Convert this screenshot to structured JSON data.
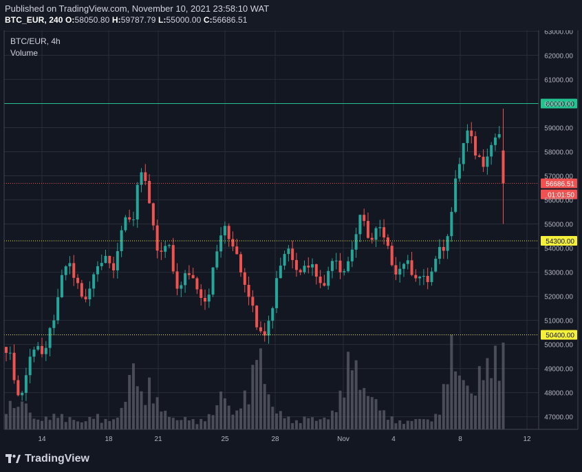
{
  "header": {
    "published": "Published on TradingView.com, November 10, 2021 23:58:10 WAT",
    "symbol_line": "BTC_EUR, 240",
    "o_label": "O:",
    "o_value": "58050.80",
    "h_label": "H:",
    "h_value": "59787.79",
    "l_label": "L:",
    "l_value": "55000.00",
    "c_label": "C:",
    "c_value": "56686.51"
  },
  "legend": {
    "symbol": "BTC/EUR, 4h",
    "indicator": "Volume"
  },
  "brand": {
    "name": "TradingView",
    "icon": "tradingview-logo-icon"
  },
  "colors": {
    "up": "#26a69a",
    "down": "#ef5350",
    "background": "#131722",
    "grid": "#2a2e39",
    "resistance": "#22c38e",
    "support": "#f5f03a",
    "last_price": "#f05252",
    "volume": "#5d606b"
  },
  "chart_data": {
    "type": "candlestick",
    "title": "BTC/EUR, 4h",
    "interval_hours": 4,
    "ylim": [
      46500,
      63000
    ],
    "y_ticks": [
      "63000.00",
      "62000.00",
      "61000.00",
      "60000.00",
      "59000.00",
      "58000.00",
      "57000.00",
      "56000.00",
      "55000.00",
      "54000.00",
      "53000.00",
      "52000.00",
      "51000.00",
      "50000.00",
      "49000.00",
      "48000.00",
      "47000.00"
    ],
    "x_ticks": [
      "14",
      "18",
      "21",
      "25",
      "28",
      "Nov",
      "4",
      "8",
      "12"
    ],
    "price_labels": [
      {
        "name": "resistance",
        "value": 60000,
        "text": "60000.00",
        "style": "solid"
      },
      {
        "name": "last-price",
        "value": 56686.51,
        "text": "56686.51",
        "style": "dotted"
      },
      {
        "name": "countdown",
        "value": 56686.51,
        "text": "01:01:50",
        "style": "none"
      },
      {
        "name": "support-upper",
        "value": 54300,
        "text": "54300.00",
        "style": "dotted"
      },
      {
        "name": "support-lower",
        "value": 50400,
        "text": "50400.00",
        "style": "dotted"
      }
    ],
    "anchors": [
      49900,
      49400,
      48600,
      47600,
      48300,
      49100,
      49800,
      50200,
      49600,
      49500,
      50500,
      51200,
      51800,
      53000,
      53400,
      53000,
      52600,
      52300,
      51600,
      52200,
      52800,
      53300,
      53600,
      53800,
      53200,
      53400,
      54600,
      55000,
      55100,
      55000,
      56600,
      57300,
      56700,
      55400,
      54500,
      53600,
      53800,
      54300,
      53300,
      52500,
      52300,
      52800,
      53000,
      52700,
      52400,
      52000,
      51800,
      52700,
      53500,
      54500,
      54800,
      54400,
      54200,
      53800,
      53000,
      52500,
      52000,
      51000,
      50900,
      50500,
      50800,
      51500,
      52800,
      53400,
      53900,
      54000,
      53500,
      53200,
      53100,
      53400,
      53300,
      53000,
      52800,
      52300,
      53200,
      53800,
      53500,
      53000,
      53200,
      53800,
      54400,
      55200,
      55000,
      54600,
      54300,
      54800,
      54700,
      54100,
      53700,
      53200,
      53000,
      53500,
      53300,
      53100,
      52900,
      52800,
      52600,
      52700,
      53200,
      53700,
      54000,
      54100,
      55500,
      57100,
      57500,
      58500,
      59000,
      58200,
      57700,
      57400,
      57600,
      57800,
      58700,
      59200,
      56686.51
    ],
    "volume_levels": [
      0.22,
      0.25,
      0.18,
      0.28,
      0.22,
      0.15,
      0.1,
      0.08,
      0.09,
      0.1,
      0.12,
      0.15,
      0.12,
      0.08,
      0.1,
      0.09,
      0.07,
      0.06,
      0.08,
      0.1,
      0.12,
      0.09,
      0.08,
      0.1,
      0.08,
      0.12,
      0.18,
      0.25,
      0.5,
      0.55,
      0.45,
      0.3,
      0.4,
      0.35,
      0.25,
      0.2,
      0.15,
      0.12,
      0.1,
      0.08,
      0.09,
      0.1,
      0.08,
      0.07,
      0.08,
      0.1,
      0.12,
      0.15,
      0.2,
      0.35,
      0.28,
      0.2,
      0.15,
      0.25,
      0.3,
      0.35,
      0.5,
      0.8,
      0.65,
      0.45,
      0.3,
      0.2,
      0.15,
      0.12,
      0.1,
      0.08,
      0.07,
      0.08,
      0.1,
      0.12,
      0.1,
      0.08,
      0.09,
      0.1,
      0.15,
      0.2,
      0.3,
      0.45,
      0.6,
      0.7,
      0.55,
      0.4,
      0.35,
      0.3,
      0.25,
      0.2,
      0.15,
      0.12,
      0.1,
      0.08,
      0.07,
      0.06,
      0.07,
      0.08,
      0.09,
      0.1,
      0.08,
      0.09,
      0.12,
      0.2,
      0.35,
      0.55,
      0.75,
      0.6,
      0.45,
      0.4,
      0.3,
      0.35,
      0.5,
      0.6,
      0.55,
      0.7,
      0.65,
      0.55,
      0.7
    ]
  }
}
